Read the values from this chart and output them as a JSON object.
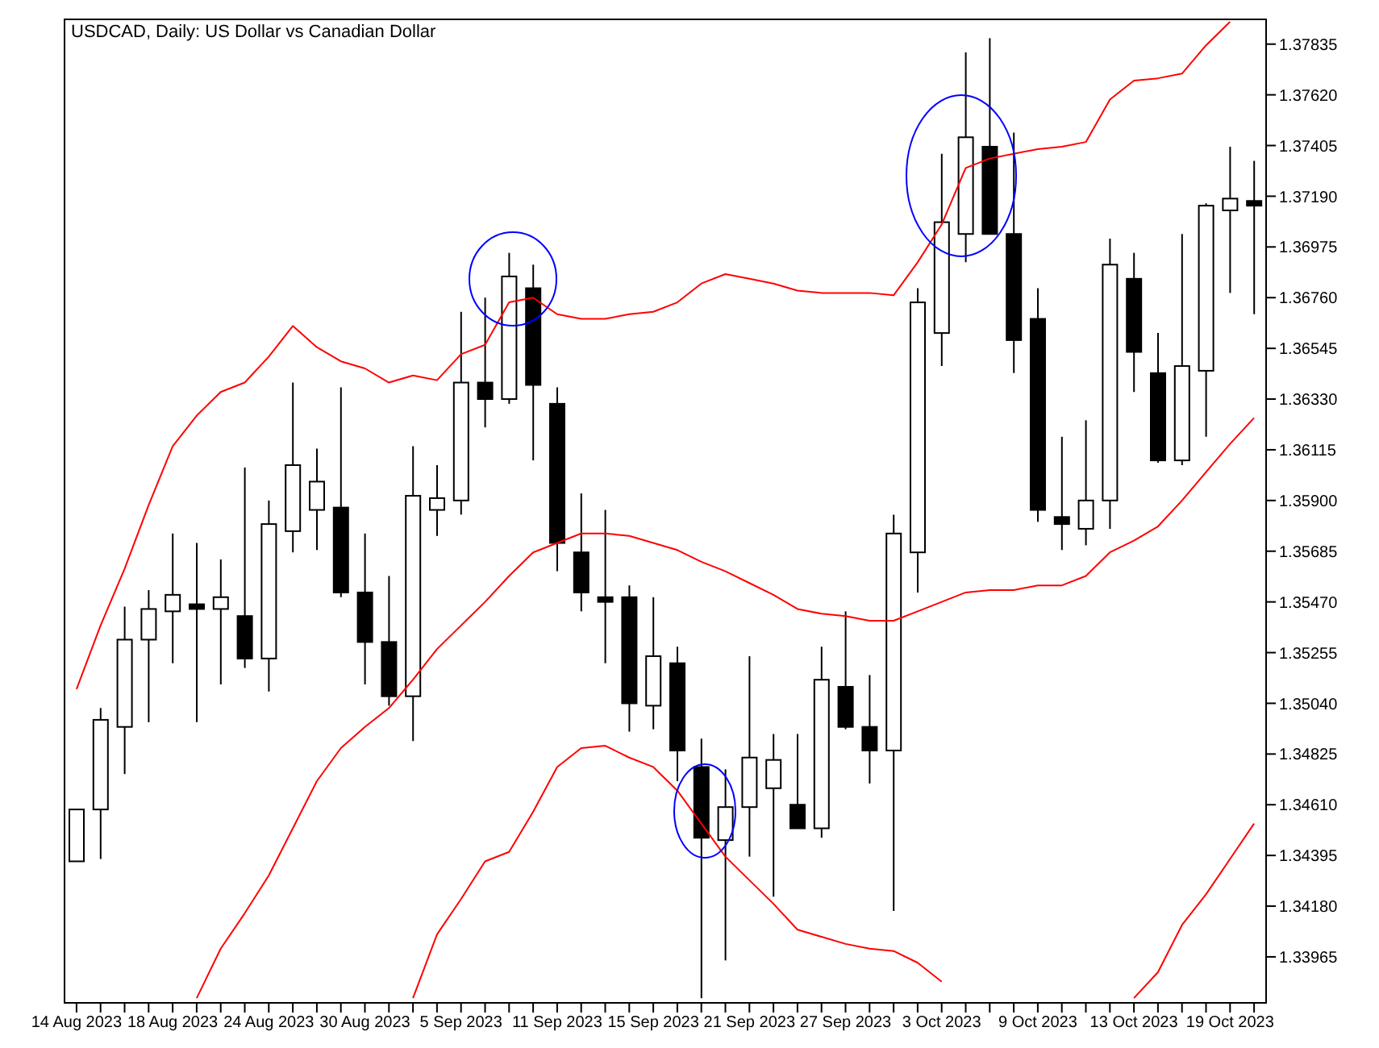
{
  "chart_data": {
    "type": "candlestick",
    "title": "USDCAD, Daily:  US Dollar vs Canadian Dollar",
    "categories": [
      "14 Aug 2023",
      null,
      null,
      null,
      "18 Aug 2023",
      null,
      null,
      null,
      "24 Aug 2023",
      null,
      null,
      null,
      "30 Aug 2023",
      null,
      null,
      null,
      "5 Sep 2023",
      null,
      null,
      null,
      "11 Sep 2023",
      null,
      null,
      null,
      "15 Sep 2023",
      null,
      null,
      null,
      "21 Sep 2023",
      null,
      null,
      null,
      "27 Sep 2023",
      null,
      null,
      null,
      "3 Oct 2023",
      null,
      null,
      null,
      "9 Oct 2023",
      null,
      null,
      null,
      "13 Oct 2023",
      null,
      null,
      null,
      "19 Oct 2023",
      null
    ],
    "ohlc": [
      [
        1.3437,
        1.3459,
        1.3437,
        1.3459
      ],
      [
        1.3459,
        1.3502,
        1.3438,
        1.3497
      ],
      [
        1.3494,
        1.3545,
        1.3474,
        1.3531
      ],
      [
        1.3531,
        1.3552,
        1.3496,
        1.3544
      ],
      [
        1.3543,
        1.3576,
        1.3521,
        1.355
      ],
      [
        1.3546,
        1.3572,
        1.3496,
        1.3544
      ],
      [
        1.3544,
        1.3565,
        1.3512,
        1.3549
      ],
      [
        1.3541,
        1.3604,
        1.3519,
        1.3523
      ],
      [
        1.3523,
        1.359,
        1.3509,
        1.358
      ],
      [
        1.3577,
        1.364,
        1.3568,
        1.3605
      ],
      [
        1.3586,
        1.3612,
        1.3569,
        1.3598
      ],
      [
        1.3587,
        1.3638,
        1.3549,
        1.3551
      ],
      [
        1.3551,
        1.3576,
        1.3512,
        1.353
      ],
      [
        1.353,
        1.3558,
        1.3503,
        1.3507
      ],
      [
        1.3507,
        1.3613,
        1.3488,
        1.3592
      ],
      [
        1.3586,
        1.3605,
        1.3575,
        1.3591
      ],
      [
        1.359,
        1.367,
        1.3584,
        1.364
      ],
      [
        1.364,
        1.3676,
        1.3621,
        1.3633
      ],
      [
        1.3633,
        1.3695,
        1.3631,
        1.3685
      ],
      [
        1.368,
        1.369,
        1.3607,
        1.3639
      ],
      [
        1.3631,
        1.3638,
        1.356,
        1.3572
      ],
      [
        1.3568,
        1.3593,
        1.3543,
        1.3551
      ],
      [
        1.3549,
        1.3586,
        1.3521,
        1.3547
      ],
      [
        1.3549,
        1.3554,
        1.3492,
        1.3504
      ],
      [
        1.3503,
        1.3549,
        1.3493,
        1.3524
      ],
      [
        1.3521,
        1.3528,
        1.3471,
        1.3484
      ],
      [
        1.3477,
        1.3489,
        1.3379,
        1.3447
      ],
      [
        1.3446,
        1.3476,
        1.3395,
        1.346
      ],
      [
        1.346,
        1.3524,
        1.3439,
        1.3481
      ],
      [
        1.3468,
        1.3491,
        1.3422,
        1.348
      ],
      [
        1.3461,
        1.3491,
        1.3451,
        1.3451
      ],
      [
        1.3451,
        1.3528,
        1.3447,
        1.3514
      ],
      [
        1.3511,
        1.3543,
        1.3493,
        1.3494
      ],
      [
        1.3494,
        1.3516,
        1.347,
        1.3484
      ],
      [
        1.3484,
        1.3584,
        1.3416,
        1.3576
      ],
      [
        1.3568,
        1.368,
        1.3551,
        1.3674
      ],
      [
        1.3661,
        1.3737,
        1.3647,
        1.3708
      ],
      [
        1.3703,
        1.378,
        1.3691,
        1.3744
      ],
      [
        1.374,
        1.3786,
        1.3703,
        1.3703
      ],
      [
        1.3703,
        1.3746,
        1.3644,
        1.3658
      ],
      [
        1.3667,
        1.368,
        1.3581,
        1.3586
      ],
      [
        1.3583,
        1.3617,
        1.3569,
        1.358
      ],
      [
        1.3578,
        1.3624,
        1.3571,
        1.359
      ],
      [
        1.359,
        1.3701,
        1.3578,
        1.369
      ],
      [
        1.3684,
        1.3695,
        1.3636,
        1.3653
      ],
      [
        1.3644,
        1.3661,
        1.3606,
        1.3607
      ],
      [
        1.3607,
        1.3703,
        1.3605,
        1.3647
      ],
      [
        1.3645,
        1.3716,
        1.3617,
        1.3715
      ],
      [
        1.3713,
        1.374,
        1.3678,
        1.3718
      ],
      [
        1.3717,
        1.3734,
        1.3669,
        1.3715
      ]
    ],
    "series": [
      {
        "type": "line",
        "color": "#ff0000",
        "values": [
          1.351,
          1.3537,
          1.3561,
          1.3588,
          1.3613,
          1.3626,
          1.3636,
          1.364,
          1.3651,
          1.3664,
          1.3655,
          1.3649,
          1.3646,
          1.364,
          1.3643,
          1.3641,
          1.3652,
          1.3656,
          1.3674,
          1.3676,
          1.3669,
          1.3667,
          1.3667,
          1.3669,
          1.367,
          1.3674,
          1.3682,
          1.3686,
          1.3684,
          1.3682,
          1.3679,
          1.3678,
          1.3678,
          1.3678,
          1.3677,
          1.3691,
          1.3707,
          1.3731,
          1.3735,
          1.3737,
          1.3739,
          1.374,
          1.3742,
          1.376,
          1.3768,
          1.3769,
          1.3771,
          1.3783,
          1.3793,
          null
        ]
      },
      {
        "type": "line",
        "color": "#ff0000",
        "values": [
          null,
          null,
          null,
          null,
          null,
          1.3379,
          1.34,
          1.3415,
          1.3431,
          1.3451,
          1.3471,
          1.3485,
          1.3494,
          1.3502,
          1.3514,
          1.3527,
          1.3537,
          1.3547,
          1.3558,
          1.3568,
          1.3572,
          1.3576,
          1.3576,
          1.3575,
          1.3572,
          1.3569,
          1.3564,
          1.356,
          1.3555,
          1.355,
          1.3544,
          1.3542,
          1.3541,
          1.3539,
          1.3539,
          1.3543,
          1.3547,
          1.3551,
          1.3552,
          1.3552,
          1.3554,
          1.3554,
          1.3558,
          1.3568,
          1.3573,
          1.3579,
          1.359,
          1.3602,
          1.3614,
          1.3625
        ]
      },
      {
        "type": "line",
        "color": "#ff0000",
        "values": [
          null,
          null,
          null,
          null,
          null,
          null,
          null,
          null,
          null,
          null,
          null,
          null,
          null,
          null,
          1.3379,
          1.3406,
          1.3421,
          1.3437,
          1.3441,
          1.3458,
          1.3477,
          1.3485,
          1.3486,
          1.3481,
          1.3477,
          1.3467,
          1.3453,
          1.3439,
          1.3429,
          1.3419,
          1.3408,
          1.3405,
          1.3402,
          1.34,
          1.3399,
          1.3394,
          1.3386,
          null,
          null,
          null,
          null,
          null,
          null,
          null,
          1.3379,
          1.339,
          1.341,
          1.3423,
          1.3438,
          1.3453
        ]
      }
    ],
    "ylim": [
      1.3377,
      1.3794
    ],
    "yticks": [
      1.37835,
      {
        "value": 1.3762,
        "label": "1.37620"
      },
      1.37405,
      {
        "value": 1.3719,
        "label": "1.37190"
      },
      1.36975,
      {
        "value": 1.3676,
        "label": "1.36760"
      },
      1.36545,
      {
        "value": 1.3633,
        "label": "1.36330"
      },
      1.36115,
      {
        "value": 1.359,
        "label": "1.35900"
      },
      1.35685,
      {
        "value": 1.3547,
        "label": "1.35470"
      },
      1.35255,
      {
        "value": 1.3504,
        "label": "1.35040"
      },
      1.34825,
      {
        "value": 1.3461,
        "label": "1.34610"
      },
      1.34395,
      {
        "value": 1.3418,
        "label": "1.34180"
      },
      1.33965
    ]
  }
}
